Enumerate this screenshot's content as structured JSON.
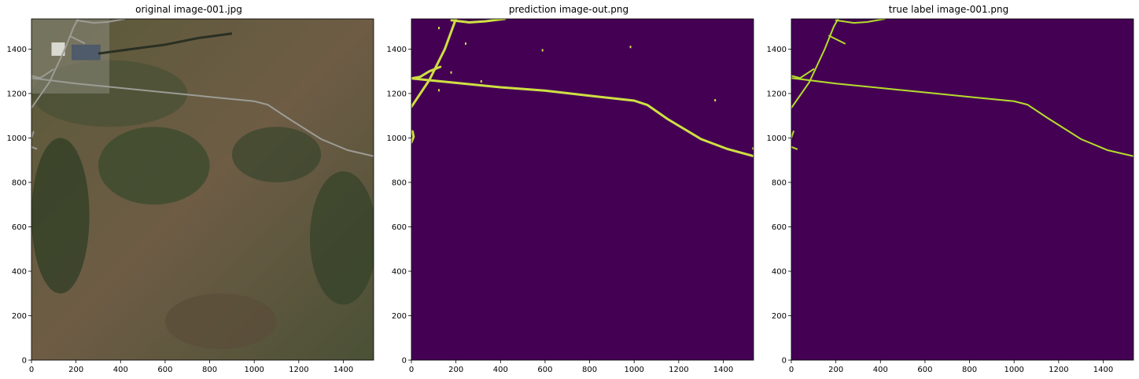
{
  "panels": [
    {
      "title": "original image-001.jpg",
      "kind": "photo"
    },
    {
      "title": "prediction image-out.png",
      "kind": "prediction"
    },
    {
      "title": "true label image-001.png",
      "kind": "label"
    }
  ],
  "axes": {
    "x_ticks": [
      0,
      200,
      400,
      600,
      800,
      1000,
      1200,
      1400
    ],
    "y_ticks": [
      0,
      200,
      400,
      600,
      800,
      1000,
      1200,
      1400
    ],
    "x_range": [
      0,
      1536
    ],
    "y_range": [
      1536,
      0
    ]
  },
  "colors": {
    "mask_background": "#440154",
    "road": "#cfe043",
    "road_label": "#b5de2b"
  }
}
